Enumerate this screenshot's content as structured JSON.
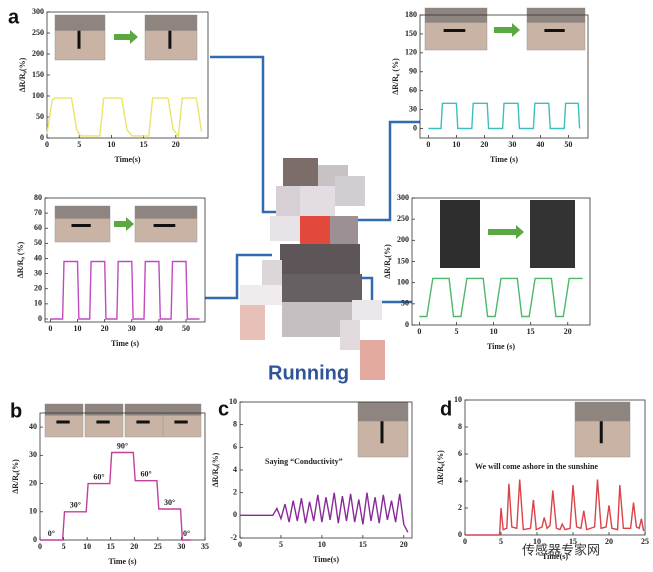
{
  "figure": {
    "caption": "Running",
    "watermark": "传感器专家网"
  },
  "chart_data": [
    {
      "type": "line",
      "panel": "a",
      "ylabel": "ΔR/R₀(%)",
      "xlabel": "Time(s)",
      "color": "#ece36a",
      "x": [
        0,
        0.8,
        1.2,
        3.8,
        4.6,
        5.2,
        8.2,
        8.8,
        11.6,
        12.4,
        13.2,
        15.8,
        16.4,
        18.8,
        19.6,
        20.4,
        21,
        23.2,
        24
      ],
      "values": [
        10,
        90,
        95,
        95,
        20,
        5,
        5,
        95,
        95,
        20,
        5,
        5,
        95,
        95,
        20,
        5,
        95,
        95,
        15
      ],
      "xlim": [
        0,
        25
      ],
      "ylim": [
        0,
        300
      ],
      "xticks": [
        0,
        5,
        10,
        15,
        20
      ],
      "yticks": [
        0,
        50,
        100,
        150,
        200,
        250,
        300
      ]
    },
    {
      "type": "line",
      "ylabel": "ΔR/R₀ (%)",
      "xlabel": "Time (s)",
      "color": "#3cbfc0",
      "x": [
        0,
        4.5,
        5,
        10,
        10.5,
        15.5,
        16,
        21,
        21.5,
        26.5,
        27,
        32,
        32.5,
        37.5,
        38,
        43,
        43.5,
        48.5,
        49,
        53.5,
        54
      ],
      "values": [
        0,
        0,
        40,
        40,
        0,
        0,
        40,
        40,
        0,
        0,
        40,
        40,
        0,
        0,
        40,
        40,
        0,
        0,
        40,
        40,
        0
      ],
      "xlim": [
        -3,
        57
      ],
      "ylim": [
        -15,
        180
      ],
      "xticks": [
        0,
        10,
        20,
        30,
        40,
        50
      ],
      "yticks": [
        0,
        30,
        60,
        90,
        120,
        150,
        180
      ]
    },
    {
      "type": "line",
      "ylabel": "ΔR/R₀ (%)",
      "xlabel": "Time (s)",
      "color": "#c04bbf",
      "x": [
        0,
        4.5,
        5,
        10,
        10.5,
        14.5,
        15,
        20,
        20.5,
        24.5,
        25,
        30,
        30.5,
        34.5,
        35,
        40,
        40.5,
        44.5,
        45,
        50,
        50.5,
        55
      ],
      "values": [
        0,
        0,
        38,
        38,
        0,
        0,
        38,
        38,
        0,
        0,
        38,
        38,
        0,
        0,
        38,
        38,
        0,
        0,
        38,
        38,
        0,
        0
      ],
      "xlim": [
        -2,
        57
      ],
      "ylim": [
        -2,
        80
      ],
      "xticks": [
        0,
        10,
        20,
        30,
        40,
        50
      ],
      "yticks": [
        0,
        10,
        20,
        30,
        40,
        50,
        60,
        70,
        80
      ]
    },
    {
      "type": "line",
      "ylabel": "ΔR/R₀(%)",
      "xlabel": "Time (s)",
      "color": "#4cb86a",
      "x": [
        0,
        1,
        1.8,
        4,
        4.6,
        5.6,
        6.4,
        8.6,
        9.2,
        10.2,
        11,
        13.2,
        13.8,
        14.8,
        15.6,
        17.8,
        18.4,
        19.4,
        20.2,
        22
      ],
      "values": [
        20,
        20,
        110,
        110,
        20,
        20,
        110,
        110,
        20,
        20,
        110,
        110,
        20,
        20,
        110,
        110,
        20,
        20,
        110,
        110
      ],
      "xlim": [
        -1,
        23
      ],
      "ylim": [
        0,
        300
      ],
      "xticks": [
        0,
        5,
        10,
        15,
        20
      ],
      "yticks": [
        0,
        50,
        100,
        150,
        200,
        250,
        300
      ]
    },
    {
      "type": "step",
      "panel": "b",
      "ylabel": "ΔR/R₀(%)",
      "xlabel": "Time (s)",
      "color": "#c0409a",
      "x": [
        0,
        4.8,
        5.2,
        9.8,
        10.2,
        14.8,
        15.2,
        19.8,
        20.2,
        24.8,
        25.2,
        29.8,
        30.2,
        32
      ],
      "values": [
        0,
        0,
        10,
        10,
        20,
        20,
        31,
        31,
        21,
        21,
        11,
        11,
        0,
        0
      ],
      "step_labels": [
        "0°",
        "30°",
        "60°",
        "90°",
        "60°",
        "30°",
        "0°"
      ],
      "xlim": [
        0,
        35
      ],
      "ylim": [
        0,
        45
      ],
      "xticks": [
        0,
        5,
        10,
        15,
        20,
        25,
        30,
        35
      ],
      "yticks": [
        0,
        10,
        20,
        30,
        40
      ]
    },
    {
      "type": "line",
      "panel": "c",
      "ylabel": "ΔR/R₀(%)",
      "xlabel": "Time(s)",
      "color": "#8a2a9a",
      "annotation": "Saying “Conductivity”",
      "x": [
        0,
        4,
        4.5,
        5,
        5.5,
        6,
        6.5,
        7,
        7.5,
        8,
        8.5,
        9,
        9.5,
        10,
        10.5,
        11,
        11.5,
        12,
        12.5,
        13,
        13.5,
        14,
        14.5,
        15,
        15.5,
        16,
        16.5,
        17,
        17.5,
        18,
        18.5,
        19,
        19.5,
        20,
        20.5
      ],
      "values": [
        0,
        0,
        0.6,
        -0.3,
        1.0,
        -0.6,
        1.3,
        -0.5,
        1.5,
        -0.7,
        1.2,
        -0.5,
        1.8,
        -0.6,
        1.6,
        -0.4,
        2.0,
        -0.7,
        1.7,
        -0.5,
        1.9,
        -0.6,
        1.4,
        -0.8,
        2.0,
        -0.5,
        1.6,
        -0.7,
        1.8,
        -0.4,
        1.3,
        -0.6,
        1.9,
        -0.8,
        -1.5
      ],
      "xlim": [
        0,
        21
      ],
      "ylim": [
        -2,
        10
      ],
      "xticks": [
        0,
        5,
        10,
        15,
        20
      ],
      "yticks": [
        -2,
        0,
        2,
        4,
        6,
        8,
        10
      ]
    },
    {
      "type": "line",
      "panel": "d",
      "ylabel": "ΔR/R₀(%)",
      "xlabel": "Time(s)",
      "color": "#d9434a",
      "annotation": "We will come ashore in the sunshine",
      "x": [
        0,
        4.8,
        5,
        5.3,
        5.8,
        6.1,
        6.5,
        7.2,
        7.6,
        8.1,
        9.1,
        9.5,
        9.9,
        10.7,
        11,
        11.4,
        11.8,
        12.2,
        12.7,
        13.2,
        13.5,
        13.9,
        14.6,
        15,
        15.5,
        16.1,
        16.5,
        16.9,
        18,
        18.4,
        18.9,
        19.6,
        20,
        20.4,
        21.2,
        21.5,
        22,
        23,
        23.4,
        23.8,
        24.2,
        24.5,
        24.8
      ],
      "values": [
        0,
        0,
        2.0,
        0.4,
        0.5,
        3.8,
        0.6,
        0.5,
        4.1,
        0.4,
        0.5,
        2.6,
        0.4,
        0.6,
        1.3,
        0.5,
        0.7,
        3.3,
        0.5,
        0.4,
        0.8,
        0.4,
        0.5,
        3.7,
        0.6,
        0.5,
        1.8,
        0.4,
        0.6,
        4.1,
        0.5,
        0.6,
        2.2,
        0.5,
        0.4,
        3.7,
        0.5,
        0.5,
        2.4,
        0.6,
        0.5,
        1.2,
        0.3
      ],
      "xlim": [
        0,
        25
      ],
      "ylim": [
        0,
        10
      ],
      "xticks": [
        0,
        5,
        10,
        15,
        20,
        25
      ],
      "yticks": [
        0,
        2,
        4,
        6,
        8,
        10
      ]
    }
  ]
}
